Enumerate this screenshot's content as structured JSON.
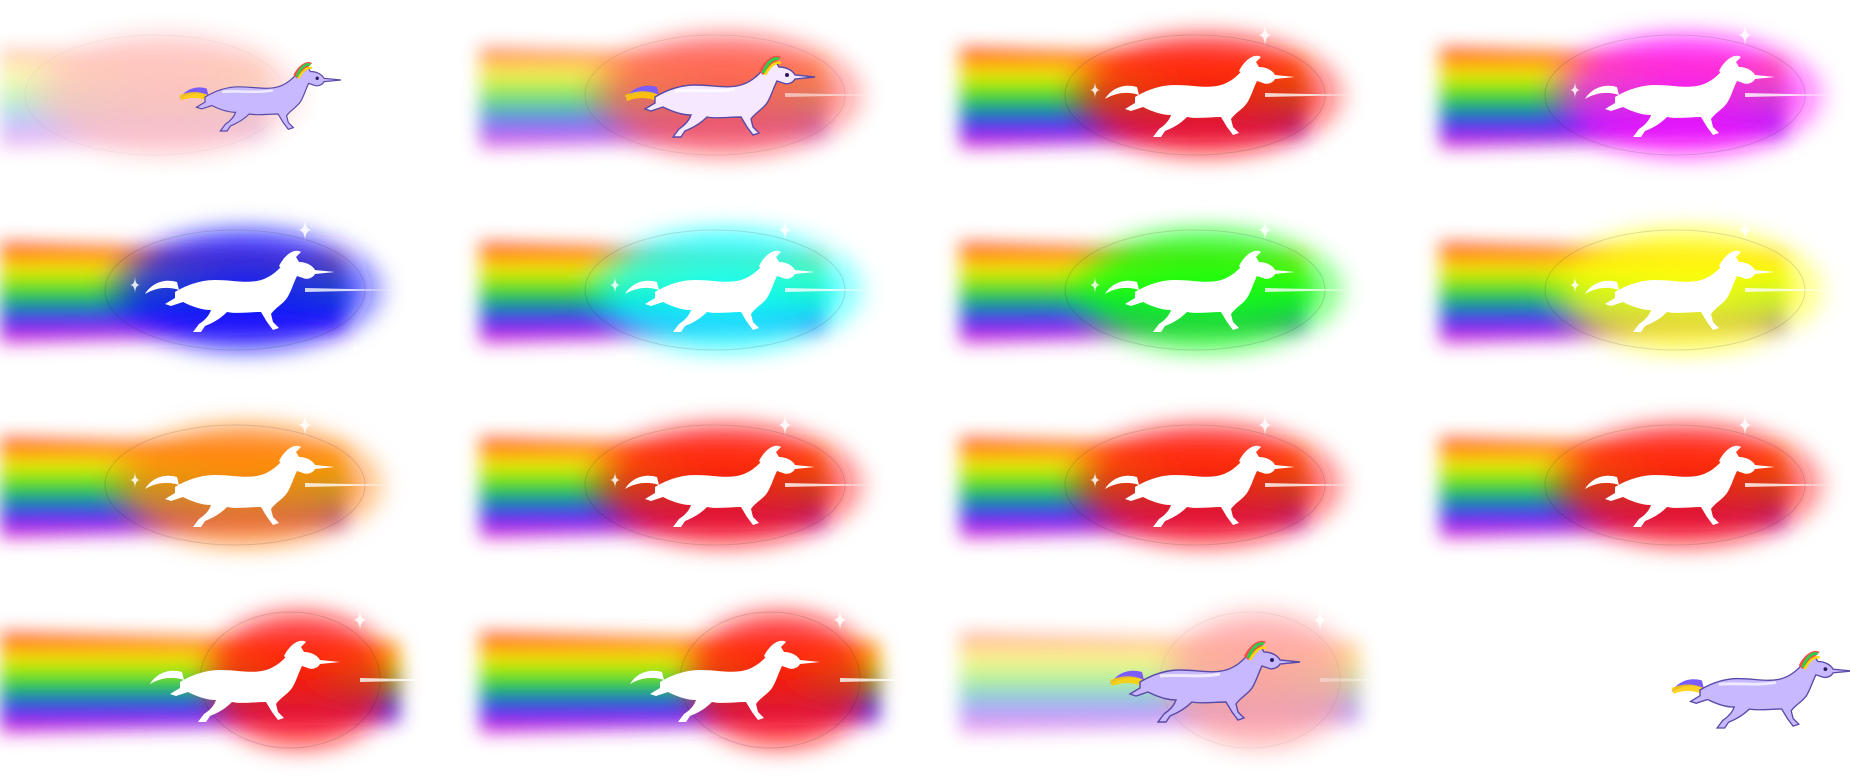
{
  "sprite_sheet": {
    "background": "#ffffff",
    "columns": 4,
    "rows": 4,
    "rainbow_colors": [
      "#ff1a1a",
      "#ffee00",
      "#22dd22",
      "#2233ff",
      "#ff22cc"
    ],
    "frames": [
      {
        "glow": "#ff3030",
        "stage": "fade-in",
        "unicorn": "color",
        "shape": "oval",
        "intensity": 0.3,
        "sparkles": 0
      },
      {
        "glow": "#ff1010",
        "stage": "charge",
        "unicorn": "light",
        "shape": "oval",
        "intensity": 0.7,
        "sparkles": 0
      },
      {
        "glow": "#ff1010",
        "stage": "dash",
        "unicorn": "silhouette",
        "shape": "oval",
        "intensity": 1,
        "sparkles": 3
      },
      {
        "glow": "#ff10ff",
        "stage": "dash",
        "unicorn": "silhouette",
        "shape": "oval",
        "intensity": 1,
        "sparkles": 3
      },
      {
        "glow": "#1010ff",
        "stage": "dash",
        "unicorn": "silhouette",
        "shape": "oval",
        "intensity": 1,
        "sparkles": 3
      },
      {
        "glow": "#10ffff",
        "stage": "dash",
        "unicorn": "silhouette",
        "shape": "oval",
        "intensity": 1,
        "sparkles": 3
      },
      {
        "glow": "#10ff10",
        "stage": "dash",
        "unicorn": "silhouette",
        "shape": "oval",
        "intensity": 1,
        "sparkles": 3
      },
      {
        "glow": "#ffff10",
        "stage": "dash",
        "unicorn": "silhouette",
        "shape": "oval",
        "intensity": 1,
        "sparkles": 3
      },
      {
        "glow": "#ff8010",
        "stage": "dash",
        "unicorn": "silhouette",
        "shape": "oval",
        "intensity": 1,
        "sparkles": 3
      },
      {
        "glow": "#ff1010",
        "stage": "dash",
        "unicorn": "silhouette",
        "shape": "oval",
        "intensity": 1,
        "sparkles": 3
      },
      {
        "glow": "#ff1010",
        "stage": "dash",
        "unicorn": "silhouette",
        "shape": "oval",
        "intensity": 1,
        "sparkles": 3
      },
      {
        "glow": "#ff1010",
        "stage": "dash",
        "unicorn": "silhouette",
        "shape": "oval",
        "intensity": 1,
        "sparkles": 2
      },
      {
        "glow": "#ff1010",
        "stage": "dash",
        "unicorn": "silhouette",
        "shape": "round",
        "intensity": 1,
        "sparkles": 2
      },
      {
        "glow": "#ff1010",
        "stage": "dash",
        "unicorn": "silhouette",
        "shape": "round",
        "intensity": 1,
        "sparkles": 2
      },
      {
        "glow": "#ff3030",
        "stage": "fade-out",
        "unicorn": "color",
        "shape": "round",
        "intensity": 0.45,
        "sparkles": 2
      },
      {
        "glow": "",
        "stage": "idle",
        "unicorn": "color",
        "shape": "none",
        "intensity": 0,
        "sparkles": 0
      }
    ]
  }
}
